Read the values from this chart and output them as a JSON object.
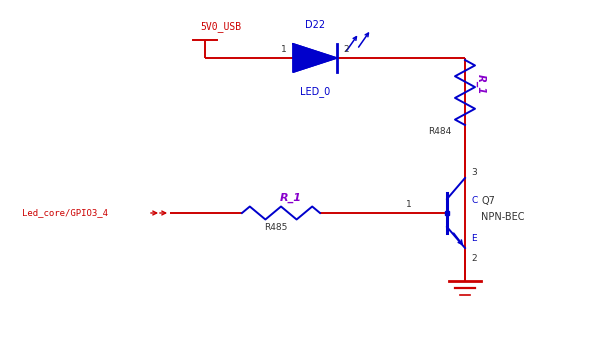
{
  "bg_color": "#ffffff",
  "wire_color": "#cc0000",
  "component_color": "#0000cc",
  "label_color_red": "#cc0000",
  "label_color_blue": "#8800cc",
  "label_color_dark": "#333333",
  "figsize": [
    5.89,
    3.43
  ],
  "dpi": 100,
  "power_label": "5V0_USB",
  "diode_label": "D22",
  "diode_sub_label": "LED_0",
  "resistor_R484_label": "R484",
  "resistor_R_1_vert_label": "R_1",
  "resistor_R485_label": "R485",
  "resistor_R_1_horiz_label": "R_1",
  "transistor_label": "Q7",
  "transistor_sub": "NPN-BEC",
  "gpio_label": "Led_core/GPIO3_4",
  "xlim": [
    0,
    5.89
  ],
  "ylim": [
    0,
    3.43
  ]
}
